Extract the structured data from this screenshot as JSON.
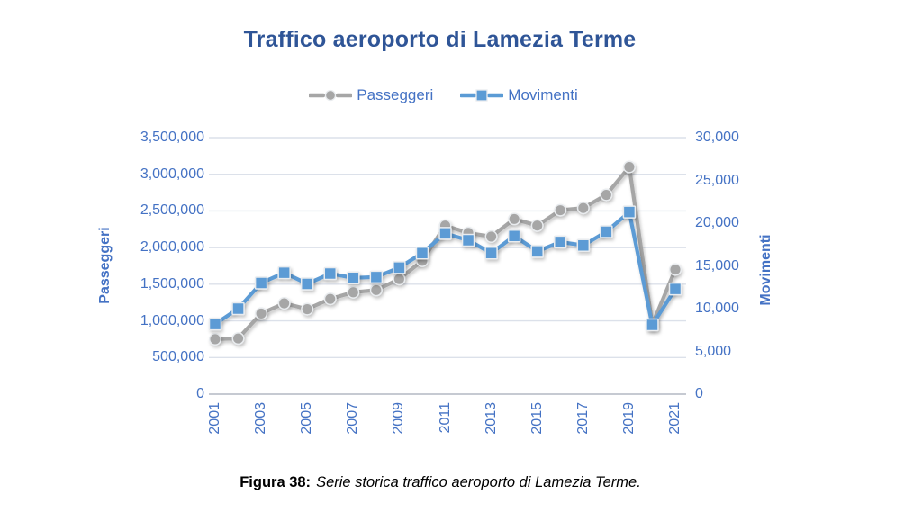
{
  "title": "Traffico aeroporto di Lamezia Terme",
  "caption": {
    "label": "Figura 38:",
    "text": "Serie storica traffico aeroporto di Lamezia Terme."
  },
  "colors": {
    "title_text": "#2F5597",
    "axis_text": "#4472C4",
    "gridline": "#DCE1EA",
    "axis_line": "#C6CAD2",
    "passeggeri": "#A6A6A6",
    "movimenti": "#5B9BD5",
    "marker_outline": "#E9ECEF",
    "caption_text": "#000000"
  },
  "chart_data": {
    "type": "line",
    "title": "Traffico aeroporto di Lamezia Terme",
    "grid": true,
    "legend_position": "top",
    "x": [
      2001,
      2002,
      2003,
      2004,
      2005,
      2006,
      2007,
      2008,
      2009,
      2010,
      2011,
      2012,
      2013,
      2014,
      2015,
      2016,
      2017,
      2018,
      2019,
      2020,
      2021
    ],
    "x_axis": {
      "tick_labels": [
        "2001",
        "2003",
        "2005",
        "2007",
        "2009",
        "2011",
        "2013",
        "2015",
        "2017",
        "2019",
        "2021"
      ]
    },
    "left_axis": {
      "title": "Passeggeri",
      "min": 0,
      "max": 3500000,
      "step": 500000,
      "tick_labels": [
        "3,500,000",
        "3,000,000",
        "2,500,000",
        "2,000,000",
        "1,500,000",
        "1,000,000",
        "500,000",
        "0"
      ]
    },
    "right_axis": {
      "title": "Movimenti",
      "min": 0,
      "max": 30000,
      "step": 5000,
      "tick_labels": [
        "30,000",
        "25,000",
        "20,000",
        "15,000",
        "10,000",
        "5,000",
        "0"
      ]
    },
    "series": [
      {
        "name": "Passeggeri",
        "axis": "left",
        "marker": "circle",
        "color": "#A6A6A6",
        "values": [
          750000,
          760000,
          1100000,
          1240000,
          1160000,
          1300000,
          1390000,
          1420000,
          1570000,
          1820000,
          2300000,
          2200000,
          2150000,
          2390000,
          2300000,
          2510000,
          2540000,
          2720000,
          3100000,
          950000,
          1700000
        ]
      },
      {
        "name": "Movimenti",
        "axis": "right",
        "marker": "square",
        "color": "#5B9BD5",
        "values": [
          8200,
          10000,
          13000,
          14200,
          12900,
          14100,
          13600,
          13700,
          14800,
          16500,
          18800,
          18000,
          16500,
          18500,
          16700,
          17800,
          17400,
          19000,
          21300,
          8100,
          12300
        ]
      }
    ]
  }
}
